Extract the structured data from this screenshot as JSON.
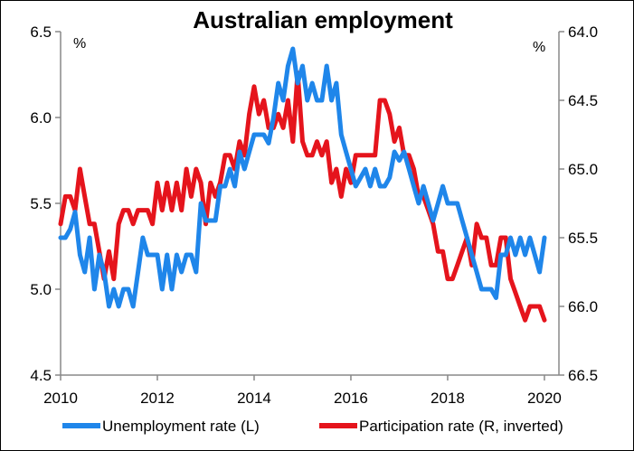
{
  "chart_data": {
    "type": "line",
    "title": "Australian employment",
    "left_axis": {
      "unit": "%",
      "range": [
        4.5,
        6.5
      ],
      "ticks": [
        "6.5",
        "6.0",
        "5.5",
        "5.0",
        "4.5"
      ],
      "tick_values": [
        6.5,
        6.0,
        5.5,
        5.0,
        4.5
      ]
    },
    "right_axis": {
      "unit": "%",
      "range": [
        64.0,
        66.5
      ],
      "inverted": true,
      "ticks": [
        "64.0",
        "64.5",
        "65.0",
        "65.5",
        "66.0",
        "66.5"
      ],
      "tick_values": [
        64.0,
        64.5,
        65.0,
        65.5,
        66.0,
        66.5
      ]
    },
    "x_axis": {
      "range": [
        2010,
        2020.3
      ],
      "ticks": [
        "2010",
        "2012",
        "2014",
        "2016",
        "2018",
        "2020"
      ],
      "tick_values": [
        2010,
        2012,
        2014,
        2016,
        2018,
        2020
      ]
    },
    "legend_position": "bottom",
    "series": [
      {
        "name": "Unemployment rate (L)",
        "axis": "left",
        "color": "#1f86ea",
        "x": [
          2010.0,
          2010.1,
          2010.2,
          2010.3,
          2010.4,
          2010.5,
          2010.6,
          2010.7,
          2010.8,
          2010.9,
          2011.0,
          2011.1,
          2011.2,
          2011.3,
          2011.4,
          2011.5,
          2011.6,
          2011.7,
          2011.8,
          2011.9,
          2012.0,
          2012.1,
          2012.2,
          2012.3,
          2012.4,
          2012.5,
          2012.6,
          2012.7,
          2012.8,
          2012.9,
          2013.0,
          2013.1,
          2013.2,
          2013.3,
          2013.4,
          2013.5,
          2013.6,
          2013.7,
          2013.8,
          2013.9,
          2014.0,
          2014.1,
          2014.2,
          2014.3,
          2014.4,
          2014.5,
          2014.6,
          2014.7,
          2014.8,
          2014.9,
          2015.0,
          2015.1,
          2015.2,
          2015.3,
          2015.4,
          2015.5,
          2015.6,
          2015.7,
          2015.8,
          2015.9,
          2016.0,
          2016.1,
          2016.2,
          2016.3,
          2016.4,
          2016.5,
          2016.6,
          2016.7,
          2016.8,
          2016.9,
          2017.0,
          2017.1,
          2017.2,
          2017.3,
          2017.4,
          2017.5,
          2017.6,
          2017.7,
          2017.8,
          2017.9,
          2018.0,
          2018.1,
          2018.2,
          2018.3,
          2018.4,
          2018.5,
          2018.6,
          2018.7,
          2018.8,
          2018.9,
          2019.0,
          2019.1,
          2019.2,
          2019.3,
          2019.4,
          2019.5,
          2019.6,
          2019.7,
          2019.8,
          2019.9,
          2020.0
        ],
        "values": [
          5.3,
          5.3,
          5.35,
          5.45,
          5.2,
          5.1,
          5.3,
          5.0,
          5.2,
          5.1,
          4.9,
          5.0,
          4.9,
          5.0,
          5.0,
          4.9,
          5.1,
          5.3,
          5.2,
          5.2,
          5.2,
          5.0,
          5.2,
          5.0,
          5.2,
          5.1,
          5.2,
          5.2,
          5.1,
          5.5,
          5.4,
          5.4,
          5.4,
          5.6,
          5.6,
          5.7,
          5.6,
          5.8,
          5.7,
          5.8,
          5.9,
          5.9,
          5.9,
          5.85,
          6.0,
          6.2,
          6.1,
          6.3,
          6.4,
          6.2,
          6.3,
          6.1,
          6.2,
          6.1,
          6.1,
          6.3,
          6.1,
          6.2,
          5.9,
          5.8,
          5.7,
          5.6,
          5.65,
          5.7,
          5.6,
          5.7,
          5.6,
          5.6,
          5.65,
          5.8,
          5.75,
          5.8,
          5.7,
          5.6,
          5.5,
          5.6,
          5.5,
          5.4,
          5.5,
          5.6,
          5.5,
          5.5,
          5.5,
          5.4,
          5.3,
          5.2,
          5.1,
          5.0,
          5.0,
          5.0,
          4.95,
          5.2,
          5.2,
          5.3,
          5.2,
          5.3,
          5.2,
          5.3,
          5.2,
          5.1,
          5.3
        ]
      },
      {
        "name": "Participation rate (R, inverted)",
        "axis": "right",
        "color": "#e5141c",
        "x": [
          2010.0,
          2010.1,
          2010.2,
          2010.3,
          2010.4,
          2010.5,
          2010.6,
          2010.7,
          2010.8,
          2010.9,
          2011.0,
          2011.1,
          2011.2,
          2011.3,
          2011.4,
          2011.5,
          2011.6,
          2011.7,
          2011.8,
          2011.9,
          2012.0,
          2012.1,
          2012.2,
          2012.3,
          2012.4,
          2012.5,
          2012.6,
          2012.7,
          2012.8,
          2012.9,
          2013.0,
          2013.1,
          2013.2,
          2013.3,
          2013.4,
          2013.5,
          2013.6,
          2013.7,
          2013.8,
          2013.9,
          2014.0,
          2014.1,
          2014.2,
          2014.3,
          2014.4,
          2014.5,
          2014.6,
          2014.7,
          2014.8,
          2014.9,
          2015.0,
          2015.1,
          2015.2,
          2015.3,
          2015.4,
          2015.5,
          2015.6,
          2015.7,
          2015.8,
          2015.9,
          2016.0,
          2016.1,
          2016.2,
          2016.3,
          2016.4,
          2016.5,
          2016.6,
          2016.7,
          2016.8,
          2016.9,
          2017.0,
          2017.1,
          2017.2,
          2017.3,
          2017.4,
          2017.5,
          2017.6,
          2017.7,
          2017.8,
          2017.9,
          2018.0,
          2018.1,
          2018.2,
          2018.3,
          2018.4,
          2018.5,
          2018.6,
          2018.7,
          2018.8,
          2018.9,
          2019.0,
          2019.1,
          2019.2,
          2019.3,
          2019.4,
          2019.5,
          2019.6,
          2019.7,
          2019.8,
          2019.9,
          2020.0
        ],
        "values": [
          65.4,
          65.2,
          65.2,
          65.3,
          65.0,
          65.2,
          65.4,
          65.4,
          65.6,
          65.8,
          65.6,
          65.8,
          65.4,
          65.3,
          65.3,
          65.4,
          65.3,
          65.3,
          65.3,
          65.4,
          65.1,
          65.3,
          65.1,
          65.3,
          65.1,
          65.3,
          65.0,
          65.2,
          65.0,
          65.1,
          65.4,
          65.1,
          65.2,
          65.1,
          64.9,
          64.9,
          65.0,
          64.8,
          64.9,
          64.6,
          64.4,
          64.6,
          64.5,
          64.7,
          64.7,
          64.6,
          64.7,
          64.5,
          64.8,
          64.3,
          64.8,
          64.9,
          64.9,
          64.8,
          64.9,
          64.8,
          65.1,
          65.0,
          65.2,
          65.0,
          65.1,
          64.9,
          64.9,
          64.9,
          64.9,
          64.9,
          64.5,
          64.5,
          64.6,
          64.8,
          64.7,
          64.9,
          64.9,
          65.0,
          65.2,
          65.2,
          65.3,
          65.4,
          65.6,
          65.6,
          65.8,
          65.8,
          65.7,
          65.6,
          65.5,
          65.7,
          65.4,
          65.5,
          65.5,
          65.7,
          65.7,
          65.5,
          65.5,
          65.8,
          65.9,
          66.0,
          66.1,
          66.0,
          66.0,
          66.0,
          66.1
        ]
      }
    ]
  }
}
